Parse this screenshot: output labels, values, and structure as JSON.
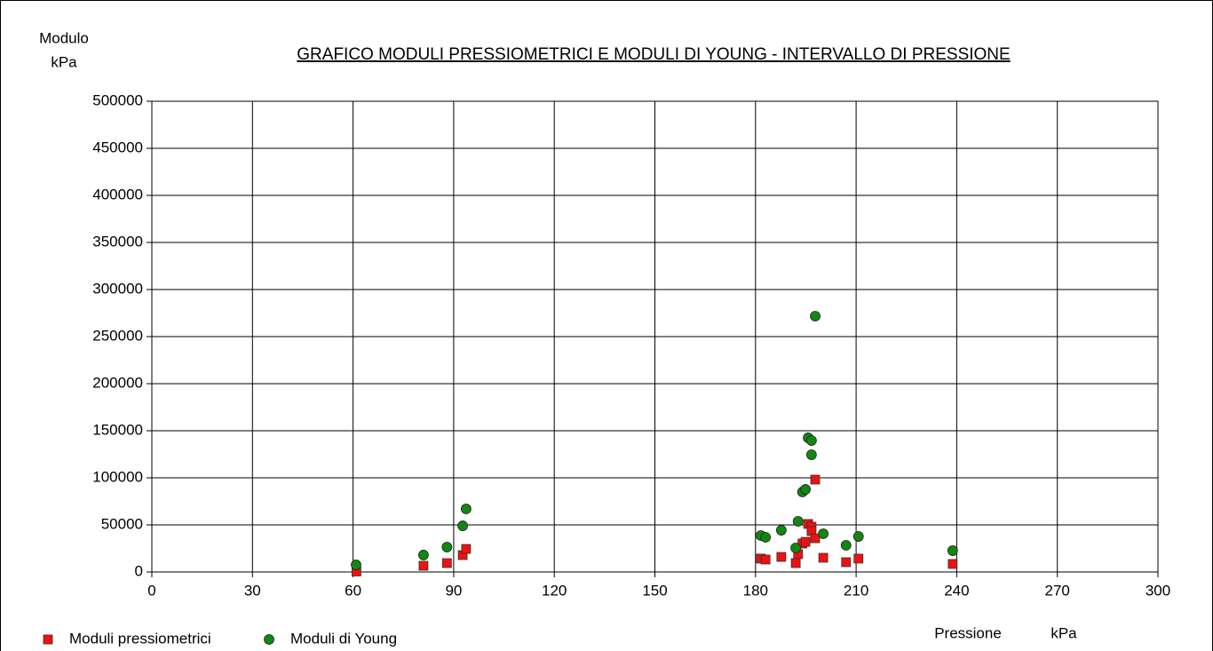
{
  "chart_data": {
    "type": "scatter",
    "title": "GRAFICO   MODULI PRESSIOMETRICI E MODULI DI YOUNG   -   INTERVALLO DI PRESSIONE ",
    "y_label": "Modulo",
    "y_unit": "kPa",
    "x_label": "Pressione",
    "x_unit": "kPa",
    "xlim": [
      0,
      300
    ],
    "xticks": [
      0,
      30,
      60,
      90,
      120,
      150,
      180,
      210,
      240,
      270,
      300
    ],
    "ylim": [
      0,
      500000
    ],
    "yticks": [
      0,
      50000,
      100000,
      150000,
      200000,
      250000,
      300000,
      350000,
      400000,
      450000,
      500000
    ],
    "grid": true,
    "legend": "bottom-left",
    "series": [
      {
        "name": "Moduli pressiometrici",
        "color": "#ee1111",
        "marker": "square",
        "x": [
          61,
          81,
          88,
          92.7,
          93.7,
          181.6,
          183,
          187.7,
          192,
          192.7,
          194,
          194.9,
          195.7,
          196.7,
          196.7,
          197.8,
          197.8,
          200.2,
          207,
          210.7,
          238.8
        ],
        "values": [
          500,
          6600,
          9400,
          17900,
          24500,
          14200,
          13200,
          16000,
          9400,
          18900,
          30200,
          32000,
          51000,
          48100,
          43400,
          98100,
          35800,
          15100,
          10400,
          14200,
          8500
        ]
      },
      {
        "name": "Moduli di Young",
        "color": "#118811",
        "marker": "circle",
        "x": [
          60.9,
          81,
          88,
          92.7,
          93.7,
          181.6,
          183,
          187.7,
          192,
          192.7,
          194,
          194.9,
          195.7,
          196.7,
          196.7,
          197.8,
          200.2,
          207,
          210.7,
          238.8
        ],
        "values": [
          7500,
          18000,
          26400,
          49000,
          67000,
          38700,
          36800,
          44300,
          25500,
          53800,
          85000,
          87700,
          142500,
          139600,
          124500,
          271700,
          40600,
          28300,
          37700,
          22600
        ]
      }
    ]
  }
}
